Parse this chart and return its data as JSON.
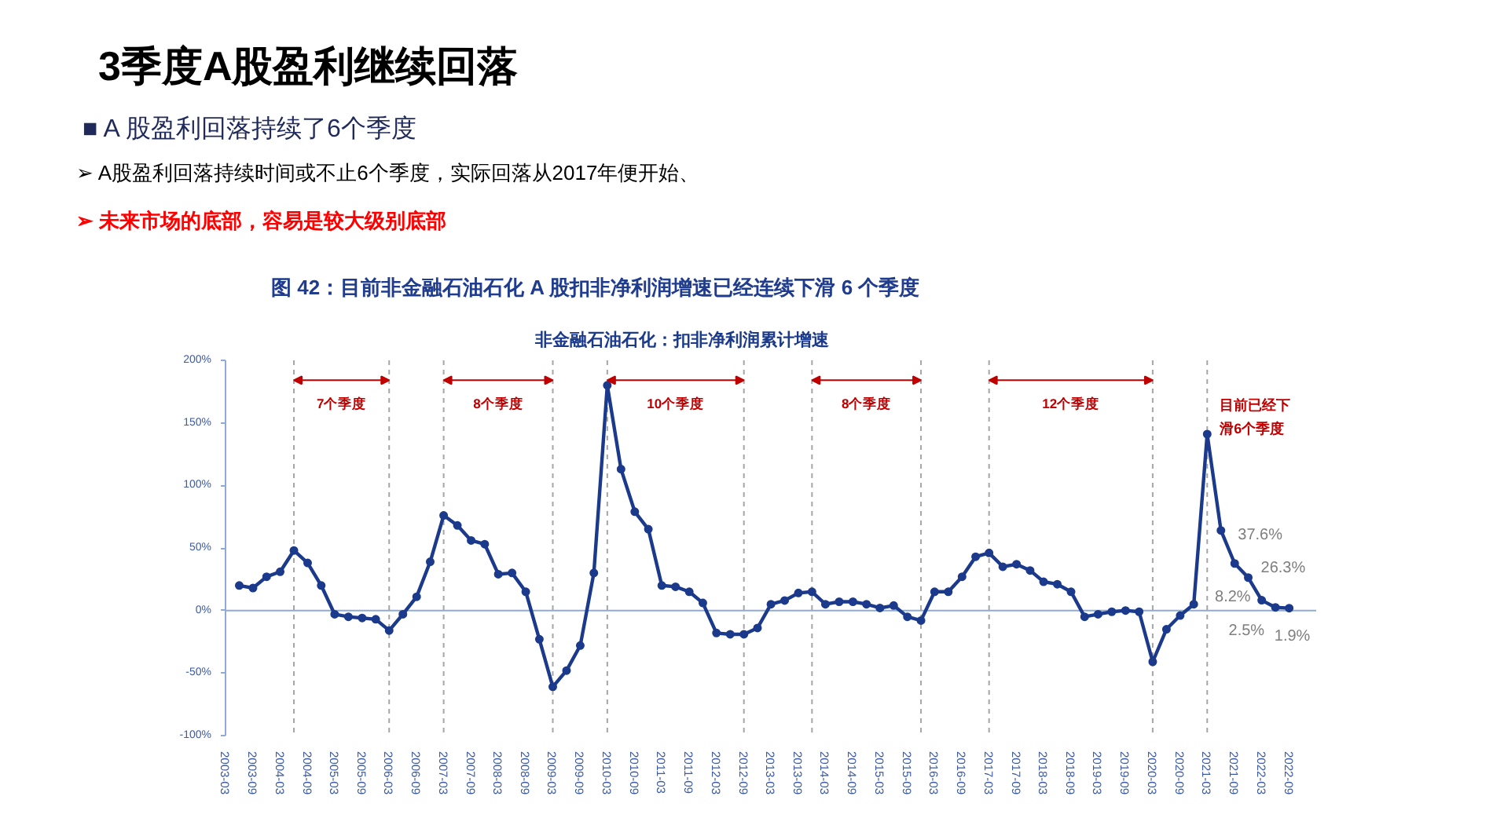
{
  "chart_data": {
    "type": "line",
    "title": "3季度A股盈利继续回落",
    "subtitle": "■ A 股盈利回落持续了6个季度",
    "annotations": [
      "➢ A股盈利回落持续时间或不止6个季度，实际回落从2017年便开始、",
      "➢ 未来市场的底部，容易是较大级别底部",
      "图 42：目前非金融石油石化 A 股扣非净利润增速已经连续下滑 6 个季度",
      "7个季度",
      "8个季度",
      "10个季度",
      "8个季度",
      "12个季度"
    ],
    "x": [
      "2003-06",
      "2003-09",
      "2003-12",
      "2004-03",
      "2004-06",
      "2004-09",
      "2004-12",
      "2005-03",
      "2005-06",
      "2005-09",
      "2005-12",
      "2006-03",
      "2006-06",
      "2006-09",
      "2006-12",
      "2007-03",
      "2007-06",
      "2007-09",
      "2007-12",
      "2008-03",
      "2008-06",
      "2008-09",
      "2008-12",
      "2009-03",
      "2009-06",
      "2009-09",
      "2009-12",
      "2010-03",
      "2010-06",
      "2010-09",
      "2010-12",
      "2011-03",
      "2011-06",
      "2011-09",
      "2011-12",
      "2012-03",
      "2012-06",
      "2012-09",
      "2012-12",
      "2013-03",
      "2013-06",
      "2013-09",
      "2013-12",
      "2014-03",
      "2014-06",
      "2014-09",
      "2014-12",
      "2015-03",
      "2015-06",
      "2015-09",
      "2015-12",
      "2016-03",
      "2016-06",
      "2016-09",
      "2016-12",
      "2017-03",
      "2017-06",
      "2017-09",
      "2017-12",
      "2018-03",
      "2018-06",
      "2018-09",
      "2018-12",
      "2019-03",
      "2019-06",
      "2019-09",
      "2019-12",
      "2020-03",
      "2020-06",
      "2020-09",
      "2020-12",
      "2021-03",
      "2021-06",
      "2021-09",
      "2021-12",
      "2022-03",
      "2022-06",
      "2022-09"
    ],
    "series": [
      {
        "name": "非金融石油石化：扣非净利润累计增速",
        "color": "#1b3a8c",
        "values": [
          20,
          18,
          27,
          31,
          48,
          38,
          20,
          -3,
          -5,
          -6,
          -7,
          -16,
          -3,
          11,
          39,
          76,
          68,
          56,
          53,
          29,
          30,
          15,
          -23,
          -61,
          -48,
          -28,
          30,
          180,
          113,
          79,
          65,
          20,
          19,
          15,
          6,
          -18,
          -19,
          -19,
          -14,
          5,
          8,
          14,
          15,
          5,
          7,
          7,
          5,
          2,
          4,
          -5,
          -8,
          15,
          15,
          27,
          43,
          46,
          35,
          37,
          32,
          23,
          21,
          15,
          -5,
          -3,
          -1,
          0,
          -1,
          -41,
          -15,
          -4,
          5,
          141,
          64,
          37.6,
          26.3,
          8.2,
          2.5,
          1.9
        ],
        "value_labels": [
          null,
          null,
          null,
          null,
          null,
          null,
          null,
          null,
          null,
          null,
          null,
          null,
          null,
          null,
          null,
          null,
          null,
          null,
          null,
          null,
          null,
          null,
          null,
          null,
          null,
          null,
          null,
          null,
          null,
          null,
          null,
          null,
          null,
          null,
          null,
          null,
          null,
          null,
          null,
          null,
          null,
          null,
          null,
          null,
          null,
          null,
          null,
          null,
          null,
          null,
          null,
          null,
          null,
          null,
          null,
          null,
          null,
          null,
          null,
          null,
          null,
          null,
          null,
          null,
          null,
          null,
          null,
          null,
          null,
          null,
          null,
          null,
          null,
          "37.6%",
          "26.3%",
          "8.2%",
          "2.5%",
          "1.9%"
        ]
      }
    ],
    "xlim": [
      "2003-03",
      "2023-03"
    ],
    "xticks": [
      "2003-03",
      "2003-09",
      "2004-03",
      "2004-09",
      "2005-03",
      "2005-09",
      "2006-03",
      "2006-09",
      "2007-03",
      "2007-09",
      "2008-03",
      "2008-09",
      "2009-03",
      "2009-09",
      "2010-03",
      "2010-09",
      "2011-03",
      "2011-09",
      "2012-03",
      "2012-09",
      "2013-03",
      "2013-09",
      "2014-03",
      "2014-09",
      "2015-03",
      "2015-09",
      "2016-03",
      "2016-09",
      "2017-03",
      "2017-09",
      "2018-03",
      "2018-09",
      "2019-03",
      "2019-09",
      "2020-03",
      "2020-09",
      "2021-03",
      "2021-09",
      "2022-03",
      "2022-09"
    ],
    "ylim": [
      -100,
      200
    ],
    "yticks": [
      {
        "value": -100,
        "label": "-100%"
      },
      {
        "value": -50,
        "label": "-50%"
      },
      {
        "value": 0,
        "label": "0%"
      },
      {
        "value": 50,
        "label": "50%"
      },
      {
        "value": 100,
        "label": "100%"
      },
      {
        "value": 150,
        "label": "150%"
      },
      {
        "value": 200,
        "label": "200%"
      }
    ],
    "ref_lines": [
      {
        "axis": "y",
        "value": 0,
        "color": "#8eaadb",
        "line_style": "solid"
      },
      {
        "axis": "x",
        "value": "2004-06",
        "color": "#a6a6a6",
        "line_style": "dashed"
      },
      {
        "axis": "x",
        "value": "2006-03",
        "color": "#a6a6a6",
        "line_style": "dashed"
      },
      {
        "axis": "x",
        "value": "2007-03",
        "color": "#a6a6a6",
        "line_style": "dashed"
      },
      {
        "axis": "x",
        "value": "2009-03",
        "color": "#a6a6a6",
        "line_style": "dashed"
      },
      {
        "axis": "x",
        "value": "2010-03",
        "color": "#a6a6a6",
        "line_style": "dashed"
      },
      {
        "axis": "x",
        "value": "2012-09",
        "color": "#a6a6a6",
        "line_style": "dashed"
      },
      {
        "axis": "x",
        "value": "2013-12",
        "color": "#a6a6a6",
        "line_style": "dashed"
      },
      {
        "axis": "x",
        "value": "2015-12",
        "color": "#a6a6a6",
        "line_style": "dashed"
      },
      {
        "axis": "x",
        "value": "2017-03",
        "color": "#a6a6a6",
        "line_style": "dashed"
      },
      {
        "axis": "x",
        "value": "2020-03",
        "color": "#a6a6a6",
        "line_style": "dashed"
      },
      {
        "axis": "x",
        "value": "2021-03",
        "color": "#a6a6a6",
        "line_style": "dashed",
        "label": "目前已经下滑6个季度"
      }
    ],
    "marker": "circle",
    "line_style": "solid",
    "legend": "top"
  }
}
